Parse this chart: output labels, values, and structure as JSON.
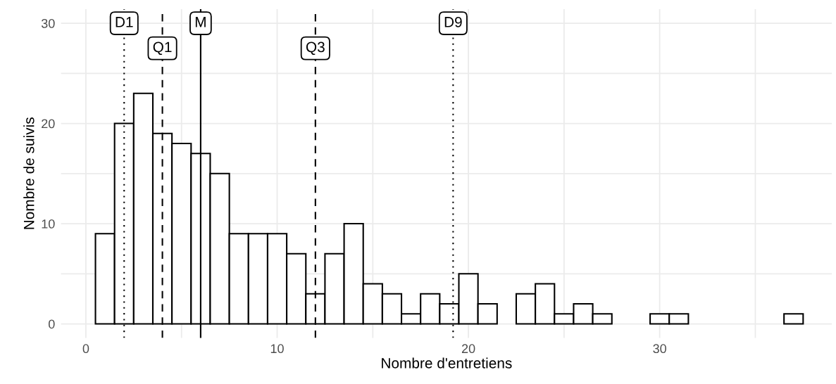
{
  "chart_data": {
    "type": "histogram",
    "xlabel": "Nombre d'entretiens",
    "ylabel": "Nombre de suivis",
    "bins": [
      0.5,
      1.5,
      2.5,
      3.5,
      4.5,
      5.5,
      6.5,
      7.5,
      8.5,
      9.5,
      10.5,
      11.5,
      12.5,
      13.5,
      14.5,
      15.5,
      16.5,
      17.5,
      18.5,
      19.5,
      20.5,
      21.5,
      22.5,
      23.5,
      24.5,
      25.5,
      26.5,
      27.5,
      28.5,
      29.5,
      30.5,
      31.5,
      32.5,
      33.5,
      34.5,
      35.5,
      36.5,
      37.5
    ],
    "values": [
      9,
      20,
      23,
      19,
      18,
      17,
      15,
      9,
      9,
      9,
      7,
      3,
      7,
      10,
      4,
      3,
      1,
      3,
      2,
      5,
      2,
      0,
      3,
      4,
      1,
      2,
      1,
      0,
      0,
      1,
      1,
      0,
      0,
      0,
      0,
      0,
      1
    ],
    "color": "#ffffff",
    "xlim": [
      -1.3,
      39
    ],
    "ylim": [
      -1.4,
      31.4
    ],
    "xticks": [
      0,
      {
        "value": 5,
        "label": null
      },
      10,
      {
        "value": 15,
        "label": null
      },
      20,
      {
        "value": 25,
        "label": null
      },
      30,
      {
        "value": 35,
        "label": null
      }
    ],
    "yticks": [
      0,
      {
        "value": 5,
        "label": null
      },
      10,
      {
        "value": 15,
        "label": null
      },
      20,
      {
        "value": 25,
        "label": null
      },
      30
    ],
    "grid": true,
    "ref_lines": [
      {
        "axis": "x",
        "value": 2,
        "label": "D1",
        "line_style": "dotted",
        "color": "#000000"
      },
      {
        "axis": "x",
        "value": 4,
        "label": "Q1",
        "line_style": "dashed",
        "color": "#000000"
      },
      {
        "axis": "x",
        "value": 6,
        "label": "M",
        "line_style": "solid",
        "color": "#000000"
      },
      {
        "axis": "x",
        "value": 12,
        "label": "Q3",
        "line_style": "dashed",
        "color": "#000000"
      },
      {
        "axis": "x",
        "value": 19.2,
        "label": "D9",
        "line_style": "dotted",
        "color": "#000000"
      }
    ]
  }
}
